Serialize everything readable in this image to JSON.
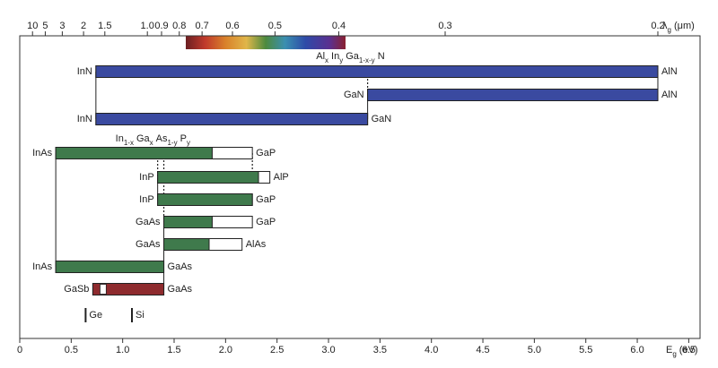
{
  "chart_data": {
    "type": "range",
    "xlim": [
      0,
      6.61
    ],
    "xticks": [
      0,
      0.5,
      {
        "value": 1,
        "label": "1.0"
      },
      1.5,
      {
        "value": 2,
        "label": "2.0"
      },
      2.5,
      {
        "value": 3,
        "label": "3.0"
      },
      3.5,
      {
        "value": 4,
        "label": "4.0"
      },
      4.5,
      {
        "value": 5,
        "label": "5.0"
      },
      5.5,
      {
        "value": 6,
        "label": "6.0"
      },
      6.5
    ],
    "x2ticks": [
      10,
      5,
      3,
      2,
      1.5,
      {
        "value": 1,
        "label": "1.0"
      },
      0.9,
      0.8,
      0.7,
      0.6,
      0.5,
      0.4,
      0.3,
      0.2
    ],
    "xlabel": [
      {
        "text": "E",
        "sub": "g"
      },
      {
        "text": "(eV)"
      }
    ],
    "x2label": [
      {
        "text": "λ",
        "sub": "g"
      },
      {
        "text": "(μm)"
      }
    ],
    "groups": [
      {
        "label": [
          {
            "text": "Al",
            "sub": "x"
          },
          {
            "text": "In",
            "sub": "y"
          },
          {
            "text": "Ga",
            "sub": "1-x-y"
          },
          {
            "text": "N"
          }
        ],
        "at": 2.88
      },
      {
        "label": [
          {
            "text": "In",
            "sub": "1-x"
          },
          {
            "text": "Ga",
            "sub": "x"
          },
          {
            "text": "As",
            "sub": "1-y"
          },
          {
            "text": "P",
            "sub": "y"
          }
        ],
        "at": 0.93
      }
    ],
    "bars": [
      {
        "left": "InN",
        "right": "AlN",
        "start": 0.74,
        "end": 6.2,
        "color": "#3a4aa0"
      },
      {
        "left": "GaN",
        "right": "AlN",
        "start": 3.38,
        "end": 6.2,
        "color": "#3a4aa0"
      },
      {
        "left": "InN",
        "right": "GaN",
        "start": 0.74,
        "end": 3.38,
        "color": "#3a4aa0"
      },
      {
        "left": "InAs",
        "right": "GaP",
        "start": 0.35,
        "end": 2.26,
        "fill_end": 1.87,
        "color": "#3f7a4c"
      },
      {
        "left": "InP",
        "right": "AlP",
        "start": 1.34,
        "end": 2.43,
        "fill_end": 2.32,
        "color": "#3f7a4c"
      },
      {
        "left": "InP",
        "right": "GaP",
        "start": 1.34,
        "end": 2.26,
        "color": "#3f7a4c"
      },
      {
        "left": "GaAs",
        "right": "GaP",
        "start": 1.4,
        "end": 2.26,
        "fill_end": 1.87,
        "color": "#3f7a4c"
      },
      {
        "left": "GaAs",
        "right": "AlAs",
        "start": 1.4,
        "end": 2.16,
        "fill_end": 1.84,
        "color": "#3f7a4c"
      },
      {
        "left": "InAs",
        "right": "GaAs",
        "start": 0.35,
        "end": 1.4,
        "color": "#3f7a4c"
      },
      {
        "left": "GaSb",
        "right": "GaAs",
        "start": 0.71,
        "end": 1.4,
        "gap_start": 0.78,
        "gap_end": 0.84,
        "color": "#8e2b2e"
      }
    ],
    "markers": [
      {
        "label": "Ge",
        "value": 0.64
      },
      {
        "label": "Si",
        "value": 1.09
      }
    ]
  }
}
